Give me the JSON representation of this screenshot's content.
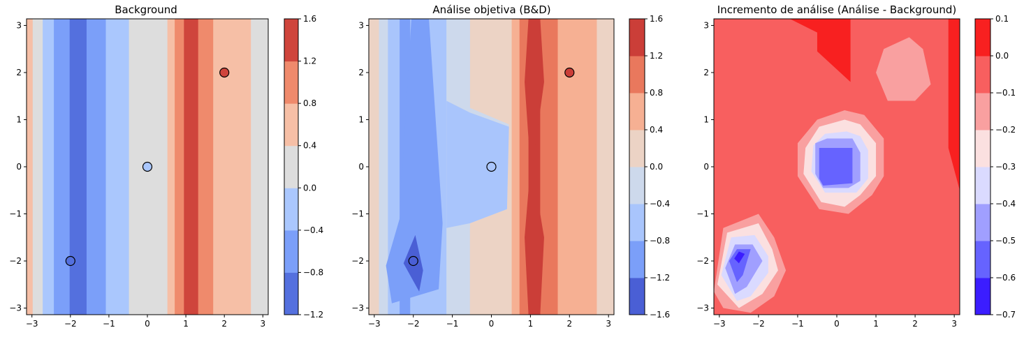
{
  "chart_data": [
    {
      "type": "contour",
      "title": "Background",
      "xlim": [
        -3.14,
        3.14
      ],
      "ylim": [
        -3.14,
        3.14
      ],
      "x_ticks": [
        -3,
        -2,
        -1,
        0,
        1,
        2,
        3
      ],
      "y_ticks": [
        -3,
        -2,
        -1,
        0,
        1,
        2,
        3
      ],
      "colorbar": {
        "ticks": [
          -1.2,
          -0.8,
          -0.4,
          0.0,
          0.4,
          0.8,
          1.2,
          1.6
        ],
        "tick_labels": [
          "−1.2",
          "−0.8",
          "−0.4",
          "0.0",
          "0.4",
          "0.8",
          "1.2",
          "1.6"
        ],
        "levels": [
          -1.2,
          -0.8,
          -0.4,
          0.0,
          0.4,
          0.8,
          1.2,
          1.6
        ],
        "colors": [
          "#5470de",
          "#7b9ff9",
          "#aac7fd",
          "#dddddd",
          "#f6bfa6",
          "#ef8a6c",
          "#cf453c"
        ]
      },
      "field": {
        "kind": "vertical_bands",
        "x_breaks": [
          -3.14,
          -2.98,
          -2.72,
          -2.43,
          -2.02,
          -1.58,
          -1.08,
          -0.48,
          0.52,
          0.71,
          0.95,
          1.32,
          1.71,
          2.69,
          3.14
        ],
        "levels_idx": [
          4,
          3,
          2,
          1,
          0,
          1,
          2,
          3,
          4,
          5,
          6,
          5,
          4,
          3
        ]
      },
      "observations": [
        {
          "x": -2,
          "y": -2,
          "color": "#5470de"
        },
        {
          "x": 0,
          "y": 0,
          "color": "#aac7fd"
        },
        {
          "x": 2,
          "y": 2,
          "color": "#cf453c"
        }
      ]
    },
    {
      "type": "contour",
      "title": "Análise objetiva (B&D)",
      "xlim": [
        -3.14,
        3.14
      ],
      "ylim": [
        -3.14,
        3.14
      ],
      "x_ticks": [
        -3,
        -2,
        -1,
        0,
        1,
        2,
        3
      ],
      "y_ticks": [
        -3,
        -2,
        -1,
        0,
        1,
        2,
        3
      ],
      "colorbar": {
        "ticks": [
          -1.6,
          -1.2,
          -0.8,
          -0.4,
          0.0,
          0.4,
          0.8,
          1.2,
          1.6
        ],
        "tick_labels": [
          "−1.6",
          "−1.2",
          "−0.8",
          "−0.4",
          "0.0",
          "0.4",
          "0.8",
          "1.2",
          "1.6"
        ],
        "levels": [
          -1.6,
          -1.2,
          -0.8,
          -0.4,
          0.0,
          0.4,
          0.8,
          1.2,
          1.6
        ],
        "colors": [
          "#4a5fd5",
          "#7b9ff9",
          "#a9c5fc",
          "#cdd9ec",
          "#ecd3c5",
          "#f6b093",
          "#e9785d",
          "#cb3e38"
        ]
      },
      "field": {
        "kind": "bands_with_anomalies",
        "x_breaks": [
          -3.14,
          -2.88,
          -2.65,
          -2.35,
          -2.08,
          -1.15,
          -0.55,
          0.52,
          0.72,
          0.95,
          1.25,
          1.7,
          2.7,
          3.14
        ],
        "levels_idx": [
          4,
          3,
          2,
          1,
          2,
          3,
          4,
          5,
          6,
          7,
          6,
          5,
          4
        ]
      },
      "observations": [
        {
          "x": -2,
          "y": -2,
          "color": "#4a5fd5"
        },
        {
          "x": 0,
          "y": 0,
          "color": "#a9c5fc"
        },
        {
          "x": 2,
          "y": 2,
          "color": "#cb3e38"
        }
      ]
    },
    {
      "type": "contour",
      "title": "Incremento de análise (Análise - Background)",
      "xlim": [
        -3.14,
        3.14
      ],
      "ylim": [
        -3.14,
        3.14
      ],
      "x_ticks": [
        -3,
        -2,
        -1,
        0,
        1,
        2,
        3
      ],
      "y_ticks": [
        -3,
        -2,
        -1,
        0,
        1,
        2,
        3
      ],
      "colorbar": {
        "ticks": [
          -0.7,
          -0.6,
          -0.5,
          -0.4,
          -0.3,
          -0.2,
          -0.1,
          0.0,
          0.1
        ],
        "tick_labels": [
          "−0.7",
          "−0.6",
          "−0.5",
          "−0.4",
          "−0.3",
          "−0.2",
          "−0.1",
          "0.0",
          "0.1"
        ],
        "levels": [
          -0.7,
          -0.6,
          -0.5,
          -0.4,
          -0.3,
          -0.2,
          -0.1,
          0.0,
          0.1
        ],
        "colors": [
          "#3b1dff",
          "#6663ff",
          "#a09fff",
          "#dadaff",
          "#fbe0e0",
          "#f9a0a0",
          "#f85f5f",
          "#f82020"
        ]
      },
      "field": {
        "kind": "blobs",
        "background_idx": 6,
        "blobs": [
          {
            "cx": -0.05,
            "cy": 0.0,
            "steps": [
              5,
              4,
              3,
              2,
              1
            ]
          },
          {
            "cx": -2.42,
            "cy": -1.9,
            "steps": [
              5,
              4,
              3,
              2,
              1,
              0
            ]
          },
          {
            "cx": 1.7,
            "cy": 2.0,
            "steps": [
              5
            ]
          }
        ],
        "positive_regions": [
          "top",
          "right"
        ]
      },
      "observations": []
    }
  ]
}
